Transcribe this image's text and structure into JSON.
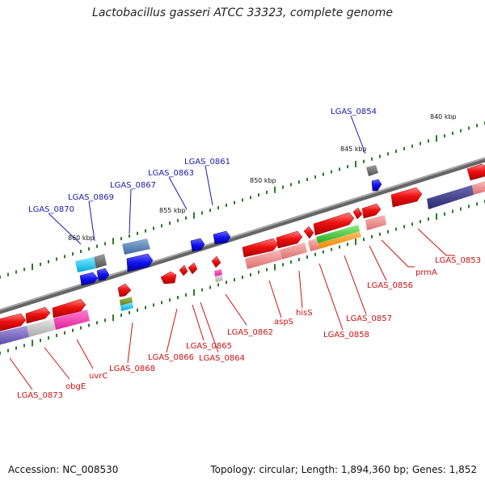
{
  "title": "Lactobacillus gasseri ATCC 33323, complete genome",
  "footer": {
    "accession": "Accession: NC_008530",
    "info": "Topology: circular; Length: 1,894,360 bp; Genes: 1,852"
  },
  "scale_labels": [
    "840 kbp",
    "845 kbp",
    "850 kbp",
    "855 kbp",
    "860 kbp"
  ],
  "top_labels": [
    "LGAS_0854",
    "LGAS_0861",
    "LGAS_0863",
    "LGAS_0867",
    "LGAS_0869",
    "LGAS_0870"
  ],
  "bottom_labels": [
    "LGAS_0853",
    "prmA",
    "LGAS_0856",
    "LGAS_0857",
    "LGAS_0858",
    "hisS",
    "aspS",
    "LGAS_0862",
    "LGAS_0864",
    "LGAS_0865",
    "LGAS_0866",
    "LGAS_0868",
    "uvrC",
    "obgE",
    "LGAS_0873"
  ],
  "colors": {
    "top_label": "#1a1aa6",
    "bottom_label": "#cc1111",
    "backbone": "#777777",
    "tick": "#2a7a2a",
    "gene_red": "#ee1111",
    "gene_blue": "#1111ee"
  }
}
